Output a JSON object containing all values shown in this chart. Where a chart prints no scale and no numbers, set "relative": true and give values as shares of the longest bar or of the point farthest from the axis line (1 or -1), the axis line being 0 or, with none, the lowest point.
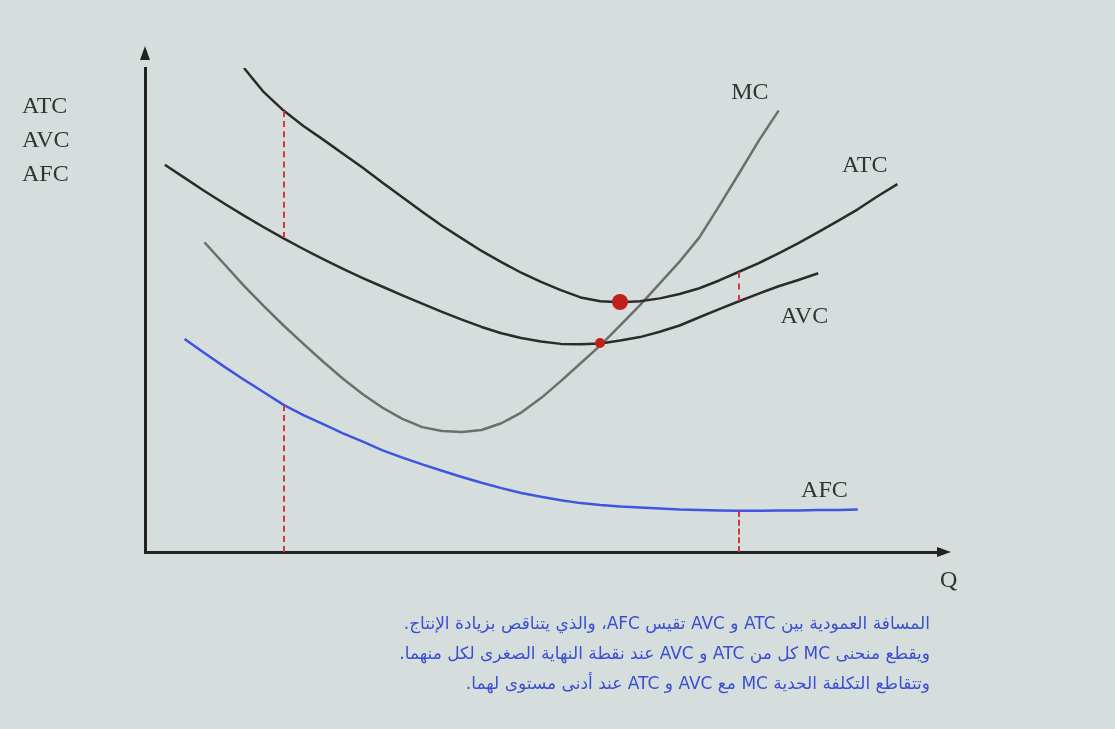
{
  "chart_data": {
    "type": "line",
    "relative": true,
    "xlabel": "Q",
    "ylabel": "ATC\nAVC\nAFC",
    "tick_labels": false,
    "grid": false,
    "legend": false,
    "marker": "none",
    "line_style": "solid",
    "annotations": [
      "المسافة العمودية بين ATC و AVC تقيس AFC، والذي يتناقص بزيادة الإنتاج.",
      "ويقطع منحنى MC كل من ATC و AVC عند نقطة النهاية الصغرى لكل منهما.",
      "وتتقاطع التكلفة الحدية MC مع AVC و ATC عند أدنى مستوى لهما."
    ],
    "categories": [
      null,
      null,
      null,
      null,
      null,
      null,
      null,
      null,
      null,
      null,
      null,
      null,
      null,
      null,
      null,
      null,
      null,
      null,
      null,
      null,
      null,
      null,
      null,
      null,
      null,
      null,
      null,
      null,
      null,
      null,
      null,
      null,
      null,
      null,
      null,
      null,
      null,
      null,
      null,
      null,
      null
    ],
    "series": [
      {
        "name": "ATC",
        "color": "#2b2b2b",
        "values": [
          null,
          null,
          null,
          null,
          null,
          1,
          0.95,
          0.912,
          0.88,
          0.852,
          0.823,
          0.794,
          0.763,
          0.733,
          0.703,
          0.674,
          0.648,
          0.622,
          0.599,
          0.577,
          0.558,
          0.541,
          0.526,
          0.518,
          0.516,
          0.518,
          0.524,
          0.533,
          0.545,
          0.561,
          0.579,
          0.597,
          0.617,
          0.638,
          0.661,
          0.684,
          0.708,
          0.735,
          0.76,
          null,
          null
        ]
      },
      {
        "name": "AVC",
        "color": "#2b2b2b",
        "values": [
          null,
          0.8,
          0.773,
          0.746,
          0.72,
          0.695,
          0.671,
          0.648,
          0.626,
          0.605,
          0.585,
          0.566,
          0.548,
          0.53,
          0.513,
          0.496,
          0.48,
          0.465,
          0.452,
          0.442,
          0.435,
          0.43,
          0.429,
          0.431,
          0.437,
          0.444,
          0.455,
          0.468,
          0.485,
          0.502,
          0.518,
          0.534,
          0.549,
          0.562,
          0.576,
          null,
          null,
          null,
          null,
          null,
          null
        ]
      },
      {
        "name": "MC",
        "color": "#6e6e6e",
        "values": [
          null,
          null,
          null,
          0.64,
          0.595,
          0.55,
          0.508,
          0.468,
          0.43,
          0.393,
          0.358,
          0.326,
          0.298,
          0.275,
          0.258,
          0.25,
          0.248,
          0.252,
          0.266,
          0.288,
          0.318,
          0.353,
          0.39,
          0.427,
          0.468,
          0.51,
          0.555,
          0.6,
          0.65,
          0.715,
          0.782,
          0.85,
          0.912,
          null,
          null,
          null,
          null,
          null,
          null,
          null,
          null
        ]
      },
      {
        "name": "AFC",
        "color": "#3f55e0",
        "values": [
          null,
          null,
          0.44,
          0.411,
          0.383,
          0.356,
          0.33,
          0.304,
          0.283,
          0.264,
          0.245,
          0.228,
          0.21,
          0.195,
          0.181,
          0.168,
          0.155,
          0.143,
          0.132,
          0.122,
          0.114,
          0.107,
          0.101,
          0.097,
          0.094,
          0.092,
          0.09,
          0.088,
          0.087,
          0.086,
          0.085,
          0.085,
          0.086,
          0.086,
          0.087,
          0.087,
          0.088,
          null,
          null,
          null,
          null
        ]
      }
    ]
  }
}
